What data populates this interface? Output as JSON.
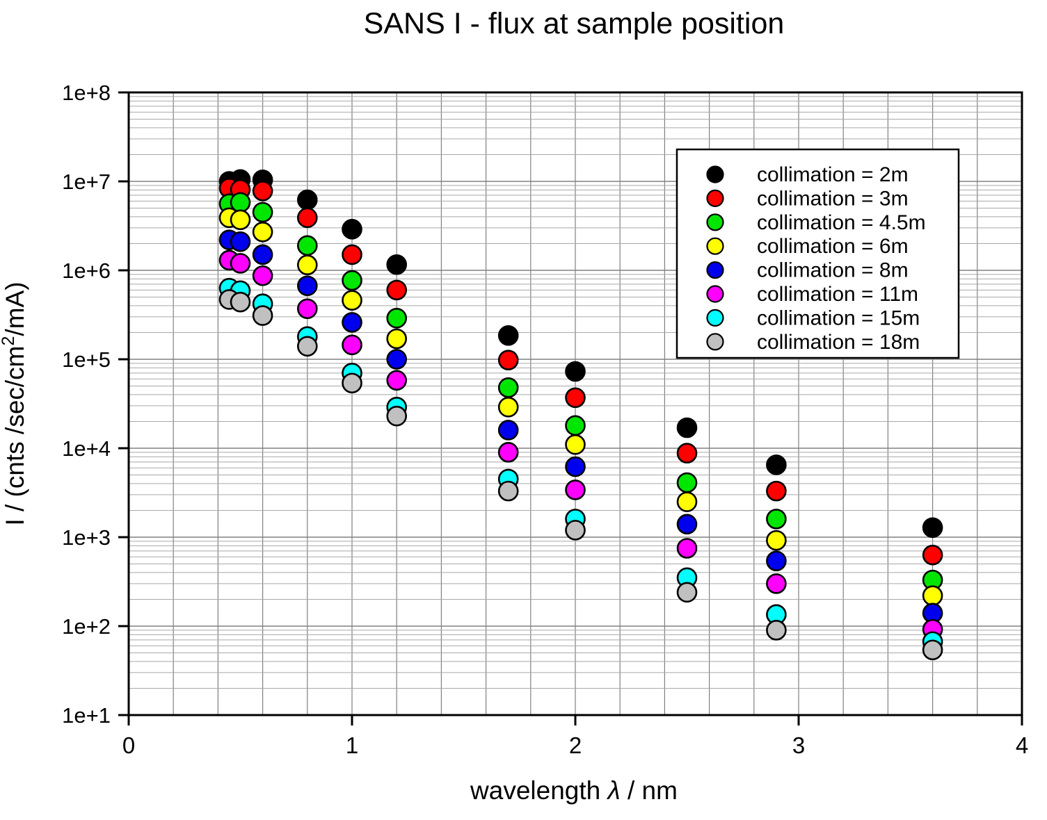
{
  "title": "SANS I  - flux at sample position",
  "chart_data": {
    "type": "scatter",
    "title": "SANS I  - flux at sample position",
    "xlabel": "wavelength λ / nm",
    "xlabel_parts": {
      "pre": "wavelength ",
      "italic": "λ",
      "post": " / nm"
    },
    "ylabel": "I / (cnts /sec/cm2/mA)",
    "ylabel_parts": {
      "pre": "I / (cnts /sec/cm",
      "sup": "2",
      "post": "/mA)"
    },
    "xlim": [
      0,
      4
    ],
    "ylim": [
      10.0,
      100000000.0
    ],
    "y_scale": "log",
    "x_ticks": [
      0,
      1,
      2,
      3,
      4
    ],
    "x_minor_grid_step": 0.2,
    "y_tick_labels": [
      "1e+8",
      "1e+7",
      "1e+6",
      "1e+5",
      "1e+4",
      "1e+3",
      "1e+2",
      "1e+1"
    ],
    "y_tick_values": [
      100000000.0,
      10000000.0,
      1000000.0,
      100000.0,
      10000.0,
      1000.0,
      100.0,
      10.0
    ],
    "grid": "major + log minor gridlines, vertical every 0.2",
    "legend_position": "upper right",
    "x": [
      0.45,
      0.5,
      0.6,
      0.8,
      1.0,
      1.2,
      1.7,
      2.0,
      2.5,
      2.9,
      3.6
    ],
    "series": [
      {
        "name": "collimation = 2m",
        "color": "#000000",
        "values": [
          10000000.0,
          10500000.0,
          10400000.0,
          6200000.0,
          2900000.0,
          1160000.0,
          185000.0,
          73000.0,
          17000.0,
          6500.0,
          1280.0
        ]
      },
      {
        "name": "collimation = 3m",
        "color": "#ff0000",
        "values": [
          8400000.0,
          8100000.0,
          7800000.0,
          3900000.0,
          1500000.0,
          600000.0,
          98000.0,
          37000.0,
          8800.0,
          3300.0,
          630.0
        ]
      },
      {
        "name": "collimation = 4.5m",
        "color": "#00e600",
        "values": [
          5600000.0,
          5800000.0,
          4500000.0,
          1900000.0,
          770000.0,
          290000.0,
          48000.0,
          18000.0,
          4100.0,
          1600.0,
          330.0
        ]
      },
      {
        "name": "collimation = 6m",
        "color": "#ffff00",
        "values": [
          3900000.0,
          3700000.0,
          2700000.0,
          1150000.0,
          460000.0,
          170000.0,
          29000.0,
          11000.0,
          2500.0,
          920.0,
          220.0
        ]
      },
      {
        "name": "collimation = 8m",
        "color": "#0000ee",
        "values": [
          2200000.0,
          2100000.0,
          1500000.0,
          670000.0,
          260000.0,
          100000.0,
          16000.0,
          6200.0,
          1400.0,
          540.0,
          140.0
        ]
      },
      {
        "name": "collimation = 11m",
        "color": "#ff00ff",
        "values": [
          1300000.0,
          1200000.0,
          870000.0,
          370000.0,
          145000.0,
          58000.0,
          9000.0,
          3400.0,
          750.0,
          300.0,
          92.0
        ]
      },
      {
        "name": "collimation = 15m",
        "color": "#00ffff",
        "values": [
          630000.0,
          590000.0,
          420000.0,
          180000.0,
          70000.0,
          29000.0,
          4500.0,
          1600.0,
          350.0,
          135.0,
          67.0
        ]
      },
      {
        "name": "collimation = 18m",
        "color": "#c0c0c0",
        "values": [
          470000.0,
          440000.0,
          310000.0,
          140000.0,
          54000.0,
          23000.0,
          3300.0,
          1200.0,
          240.0,
          90.0,
          54.0
        ]
      }
    ],
    "style": {
      "grid_color_major": "#808080",
      "grid_color_minor": "#a8a8a8",
      "frame_color": "#000000",
      "marker_radius": 13.5,
      "marker_stroke": "#000000"
    }
  }
}
